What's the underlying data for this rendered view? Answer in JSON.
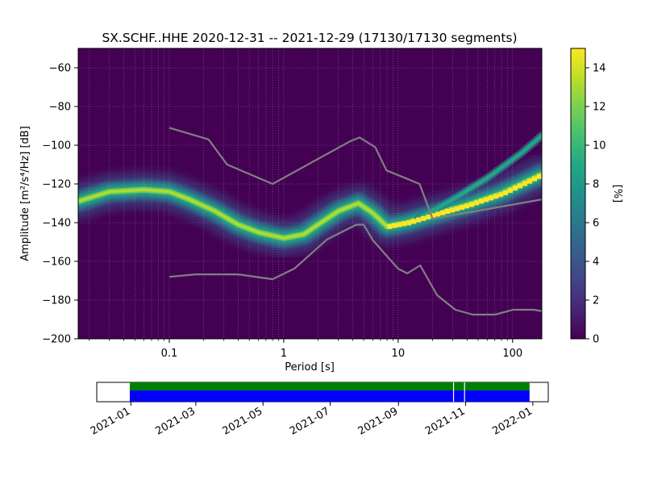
{
  "chart_data": [
    {
      "type": "heatmap",
      "title": "SX.SCHF..HHE   2020-12-31 -- 2021-12-29  (17130/17130 segments)",
      "xlabel": "Period [s]",
      "ylabel": "Amplitude [m²/s⁴/Hz] [dB]",
      "xscale": "log",
      "xlim": [
        0.016,
        180
      ],
      "ylim": [
        -200,
        -50
      ],
      "xticks": [
        0.1,
        1,
        10,
        100
      ],
      "xtick_labels": [
        "0.1",
        "1",
        "10",
        "100"
      ],
      "yticks": [
        -60,
        -80,
        -100,
        -120,
        -140,
        -160,
        -180,
        -200
      ],
      "ytick_labels": [
        "−60",
        "−80",
        "−100",
        "−120",
        "−140",
        "−160",
        "−180",
        "−200"
      ],
      "grid": true,
      "colormap": "viridis",
      "colorbar": {
        "label": "[%]",
        "range": [
          0,
          15
        ],
        "ticks": [
          0,
          2,
          4,
          6,
          8,
          10,
          12,
          14
        ],
        "tick_labels": [
          "0",
          "2",
          "4",
          "6",
          "8",
          "10",
          "12",
          "14"
        ]
      },
      "ridge": [
        {
          "period": 0.016,
          "db": -129
        },
        {
          "period": 0.03,
          "db": -124
        },
        {
          "period": 0.06,
          "db": -123
        },
        {
          "period": 0.1,
          "db": -124
        },
        {
          "period": 0.15,
          "db": -128
        },
        {
          "period": 0.25,
          "db": -134
        },
        {
          "period": 0.4,
          "db": -141
        },
        {
          "period": 0.6,
          "db": -145
        },
        {
          "period": 1.0,
          "db": -148
        },
        {
          "period": 1.5,
          "db": -146
        },
        {
          "period": 2.0,
          "db": -141
        },
        {
          "period": 3.0,
          "db": -134
        },
        {
          "period": 4.5,
          "db": -130
        },
        {
          "period": 6.0,
          "db": -135
        },
        {
          "period": 8.0,
          "db": -142
        },
        {
          "period": 12,
          "db": -140
        },
        {
          "period": 20,
          "db": -136
        },
        {
          "period": 40,
          "db": -131
        },
        {
          "period": 80,
          "db": -125
        },
        {
          "period": 180,
          "db": -115
        }
      ],
      "upper_branch": [
        {
          "period": 15,
          "db": -138
        },
        {
          "period": 30,
          "db": -128
        },
        {
          "period": 60,
          "db": -117
        },
        {
          "period": 120,
          "db": -104
        },
        {
          "period": 180,
          "db": -95
        }
      ],
      "noise_models": [
        {
          "name": "",
          "color": "#808080",
          "points": [
            {
              "period": 0.1,
              "db": -91
            },
            {
              "period": 0.22,
              "db": -97
            },
            {
              "period": 0.32,
              "db": -110
            },
            {
              "period": 0.8,
              "db": -120
            },
            {
              "period": 3.8,
              "db": -98
            },
            {
              "period": 4.6,
              "db": -96
            },
            {
              "period": 6.3,
              "db": -101
            },
            {
              "period": 7.9,
              "db": -113
            },
            {
              "period": 15.4,
              "db": -120
            },
            {
              "period": 20,
              "db": -138
            },
            {
              "period": 180,
              "db": -128
            }
          ]
        },
        {
          "name": "",
          "color": "#808080",
          "points": [
            {
              "period": 0.1,
              "db": -168
            },
            {
              "period": 0.17,
              "db": -166.7
            },
            {
              "period": 0.4,
              "db": -166.7
            },
            {
              "period": 0.8,
              "db": -169.2
            },
            {
              "period": 1.24,
              "db": -163.7
            },
            {
              "period": 2.4,
              "db": -148.6
            },
            {
              "period": 4.3,
              "db": -141.1
            },
            {
              "period": 5.0,
              "db": -141.1
            },
            {
              "period": 6.0,
              "db": -149
            },
            {
              "period": 10.0,
              "db": -163.8
            },
            {
              "period": 12,
              "db": -166.2
            },
            {
              "period": 15.6,
              "db": -162.1
            },
            {
              "period": 21.9,
              "db": -177.5
            },
            {
              "period": 31.6,
              "db": -185
            },
            {
              "period": 45,
              "db": -187.5
            },
            {
              "period": 70,
              "db": -187.5
            },
            {
              "period": 101,
              "db": -185
            },
            {
              "period": 154,
              "db": -185
            },
            {
              "period": 180,
              "db": -185.7
            }
          ]
        }
      ]
    },
    {
      "type": "timeline",
      "xlim": [
        "2020-12-01",
        "2022-01-15"
      ],
      "xtick_labels": [
        "2021-01",
        "2021-03",
        "2021-05",
        "2021-07",
        "2021-09",
        "2021-11",
        "2022-01"
      ],
      "xtick_dates": [
        "2021-01-01",
        "2021-03-01",
        "2021-05-01",
        "2021-07-01",
        "2021-09-01",
        "2021-11-01",
        "2022-01-01"
      ],
      "coverage_start": "2020-12-31",
      "coverage_end": "2021-12-29",
      "gaps": [
        "2021-10-21",
        "2021-10-31"
      ],
      "colors": {
        "data_available": "#008000",
        "used_segments": "#0000ff"
      }
    }
  ]
}
